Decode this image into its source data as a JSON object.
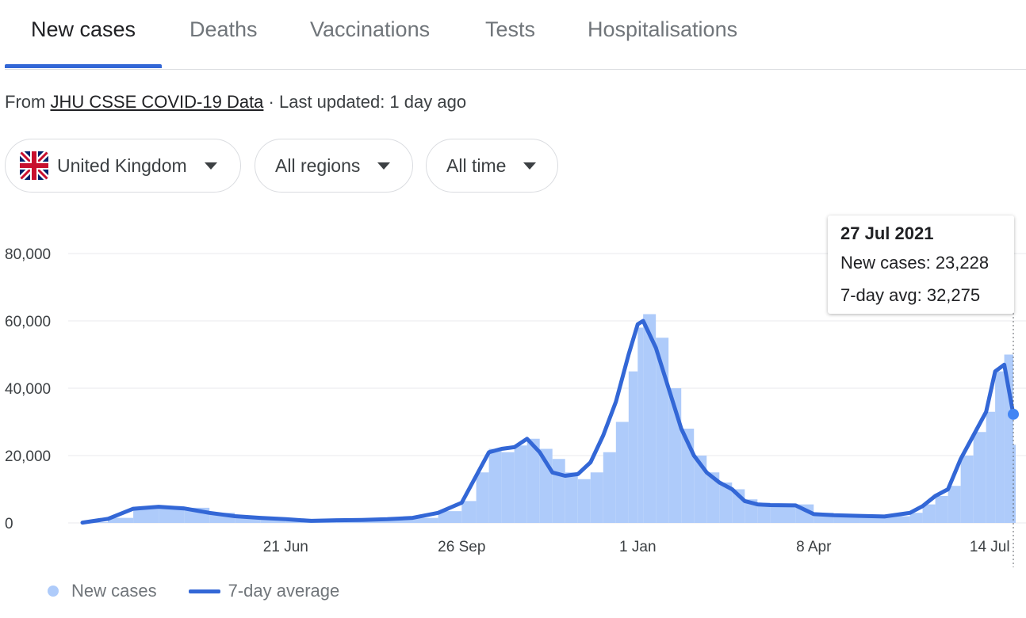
{
  "tabs": [
    "New cases",
    "Deaths",
    "Vaccinations",
    "Tests",
    "Hospitalisations"
  ],
  "source": {
    "prefix": "From",
    "link": "JHU CSSE COVID-19 Data",
    "updated": "· Last updated: 1 day ago"
  },
  "filters": {
    "country": "United Kingdom",
    "region": "All regions",
    "period": "All time"
  },
  "tooltip": {
    "date": "27 Jul 2021",
    "new_cases": "New cases: 23,228",
    "avg": "7-day avg: 32,275"
  },
  "legend": {
    "bars": "New cases",
    "line": "7-day average"
  },
  "colors": {
    "bars": "#aecbfa",
    "line": "#3367d6",
    "accent": "#3367d6"
  },
  "chart_data": {
    "type": "bar",
    "y_ticks": [
      "0",
      "20,000",
      "40,000",
      "60,000",
      "80,000"
    ],
    "x_ticks": [
      "21 Jun",
      "26 Sep",
      "1 Jan",
      "8 Apr",
      "14 Jul"
    ],
    "ylim": [
      0,
      80000
    ],
    "grid": true,
    "legend_position": "bottom-left",
    "series": [
      {
        "name": "New cases",
        "style": "bars",
        "x": [
          "2020-03-01",
          "2020-03-15",
          "2020-03-29",
          "2020-04-12",
          "2020-04-26",
          "2020-05-10",
          "2020-05-24",
          "2020-06-07",
          "2020-06-21",
          "2020-07-05",
          "2020-07-19",
          "2020-08-02",
          "2020-08-16",
          "2020-08-30",
          "2020-09-13",
          "2020-09-26",
          "2020-10-04",
          "2020-10-11",
          "2020-10-18",
          "2020-10-25",
          "2020-11-01",
          "2020-11-08",
          "2020-11-15",
          "2020-11-22",
          "2020-11-29",
          "2020-12-06",
          "2020-12-13",
          "2020-12-20",
          "2020-12-27",
          "2021-01-01",
          "2021-01-04",
          "2021-01-11",
          "2021-01-18",
          "2021-01-25",
          "2021-02-01",
          "2021-02-08",
          "2021-02-15",
          "2021-02-22",
          "2021-03-01",
          "2021-03-08",
          "2021-03-15",
          "2021-03-29",
          "2021-04-08",
          "2021-04-19",
          "2021-05-03",
          "2021-05-17",
          "2021-05-31",
          "2021-06-07",
          "2021-06-14",
          "2021-06-21",
          "2021-06-28",
          "2021-07-05",
          "2021-07-12",
          "2021-07-17",
          "2021-07-22",
          "2021-07-27"
        ],
        "values": [
          200,
          1500,
          4500,
          5000,
          4500,
          3000,
          2000,
          1500,
          1200,
          800,
          900,
          1000,
          1200,
          1500,
          3500,
          6500,
          15000,
          22000,
          21000,
          23000,
          25000,
          22000,
          19000,
          15000,
          13000,
          15000,
          21000,
          30000,
          45000,
          58000,
          62000,
          55000,
          40000,
          28000,
          20000,
          15000,
          12000,
          10000,
          7000,
          6000,
          5500,
          5500,
          3000,
          2500,
          2200,
          2000,
          3000,
          5500,
          8000,
          11000,
          20000,
          27000,
          33000,
          45000,
          50000,
          23228
        ]
      },
      {
        "name": "7-day average",
        "style": "line",
        "x": [
          "2020-03-01",
          "2020-03-15",
          "2020-03-29",
          "2020-04-12",
          "2020-04-26",
          "2020-05-10",
          "2020-05-24",
          "2020-06-07",
          "2020-06-21",
          "2020-07-05",
          "2020-07-19",
          "2020-08-02",
          "2020-08-16",
          "2020-08-30",
          "2020-09-13",
          "2020-09-26",
          "2020-10-04",
          "2020-10-11",
          "2020-10-18",
          "2020-10-25",
          "2020-11-01",
          "2020-11-08",
          "2020-11-15",
          "2020-11-22",
          "2020-11-29",
          "2020-12-06",
          "2020-12-13",
          "2020-12-20",
          "2020-12-27",
          "2021-01-01",
          "2021-01-04",
          "2021-01-11",
          "2021-01-18",
          "2021-01-25",
          "2021-02-01",
          "2021-02-08",
          "2021-02-15",
          "2021-02-22",
          "2021-03-01",
          "2021-03-08",
          "2021-03-15",
          "2021-03-29",
          "2021-04-08",
          "2021-04-19",
          "2021-05-03",
          "2021-05-17",
          "2021-05-31",
          "2021-06-07",
          "2021-06-14",
          "2021-06-21",
          "2021-06-28",
          "2021-07-05",
          "2021-07-12",
          "2021-07-17",
          "2021-07-22",
          "2021-07-27"
        ],
        "values": [
          100,
          1200,
          4200,
          4800,
          4300,
          3000,
          2000,
          1500,
          1100,
          600,
          800,
          900,
          1100,
          1500,
          3000,
          6000,
          14000,
          21000,
          22000,
          22500,
          25000,
          21000,
          15000,
          14000,
          14500,
          18000,
          26000,
          36000,
          50000,
          59000,
          60000,
          52000,
          40000,
          28000,
          20000,
          15000,
          12000,
          10000,
          6500,
          5500,
          5300,
          5200,
          2600,
          2300,
          2100,
          1900,
          3000,
          5000,
          8000,
          10000,
          19000,
          26000,
          33000,
          45000,
          47000,
          32275
        ]
      }
    ]
  }
}
